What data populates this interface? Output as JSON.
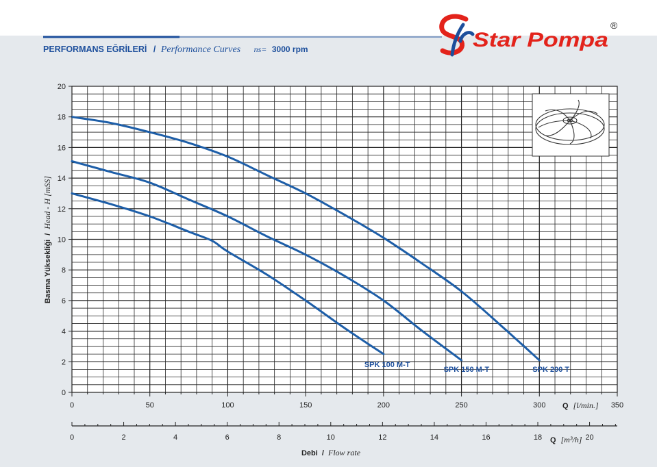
{
  "header": {
    "title_tr": "PERFORMANS EĞRİLERİ",
    "separator": "/",
    "title_en": "Performance Curves",
    "speed_symbol": "ns=",
    "speed_value": "3000 rpm"
  },
  "brand": {
    "name": "Star Pompa",
    "registered": "®",
    "color": "#e3231b",
    "logo_color": "#1d4f9c"
  },
  "colors": {
    "curve": "#1d5ea8",
    "title": "#1d4f9c",
    "label": "#1d4f9c",
    "grid": "#222222",
    "background": "#e5e9ed"
  },
  "chart_data": {
    "type": "line",
    "ylabel_tr": "Basma Yüksekliği",
    "ylabel_en": "Head - H [mSS]",
    "y_ticks": [
      0,
      2,
      4,
      6,
      8,
      10,
      12,
      14,
      16,
      18,
      20
    ],
    "ylim": [
      0,
      20
    ],
    "x_axis_lpm": {
      "symbol": "Q",
      "unit": "[l/min.]",
      "ticks": [
        0,
        50,
        100,
        150,
        200,
        250,
        300,
        350
      ],
      "range": [
        0,
        350
      ]
    },
    "x_axis_m3h": {
      "symbol": "Q",
      "unit": "[m³/h]",
      "ticks": [
        0,
        2,
        4,
        6,
        8,
        10,
        12,
        14,
        16,
        18,
        20
      ],
      "range": [
        0,
        21.07
      ]
    },
    "xlabel_tr": "Debi",
    "xlabel_separator": "/",
    "xlabel_en": "Flow rate",
    "grid": true,
    "series": [
      {
        "name": "SPK 100 M-T",
        "x": [
          0,
          25,
          50,
          75,
          90,
          100,
          125,
          150,
          175,
          200
        ],
        "y": [
          13,
          12.3,
          11.5,
          10.5,
          9.9,
          9.2,
          7.7,
          6.0,
          4.2,
          2.5
        ]
      },
      {
        "name": "SPK 150 M-T",
        "x": [
          0,
          25,
          50,
          75,
          100,
          125,
          150,
          175,
          200,
          225,
          250
        ],
        "y": [
          15.1,
          14.4,
          13.7,
          12.6,
          11.5,
          10.2,
          9.0,
          7.6,
          6.0,
          4.0,
          2.1
        ]
      },
      {
        "name": "SPK 200 T",
        "x": [
          0,
          25,
          50,
          75,
          100,
          125,
          150,
          175,
          200,
          225,
          250,
          275,
          300
        ],
        "y": [
          18.0,
          17.6,
          17.0,
          16.3,
          15.4,
          14.2,
          13.0,
          11.6,
          10.1,
          8.4,
          6.6,
          4.4,
          2.1
        ]
      }
    ]
  }
}
